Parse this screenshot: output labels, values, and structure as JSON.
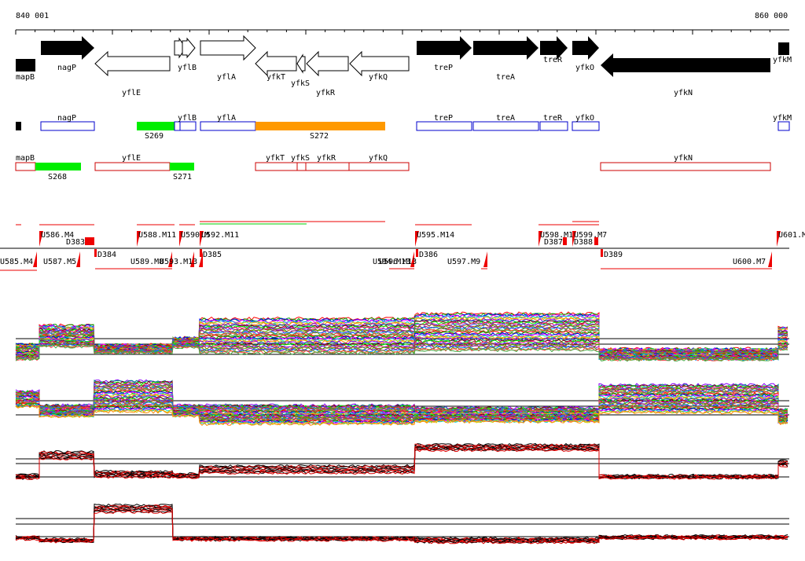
{
  "scale": {
    "start_label": "840 001",
    "end_label": "860 000"
  },
  "colors": {
    "forward_gene": "#000000",
    "reverse_gene": "#ffffff",
    "blue_outline": "#0000cc",
    "red_outline": "#cc0000",
    "green": "#00ee00",
    "orange": "#ff9900",
    "track_red": "#dd0000",
    "track_black": "#000000",
    "segment_line": "#ee0000",
    "green_line": "#00cc00"
  },
  "genes": {
    "top_row": [
      "mapB",
      "nagP",
      "yflB",
      "yflA",
      "yfkT",
      "yfkR",
      "yfkQ",
      "treP",
      "treA",
      "treR",
      "yfkO",
      "yfkM"
    ],
    "bottom_row": [
      "yflE",
      "yfkS",
      "yfkR",
      "yfkN"
    ],
    "labels": {
      "mapB": "mapB",
      "nagP": "nagP",
      "yflE": "yflE",
      "yflB": "yflB",
      "yflA": "yflA",
      "yfkT": "yfkT",
      "yfkS": "yfkS",
      "yfkR": "yfkR",
      "yfkQ": "yfkQ",
      "treP": "treP",
      "treA": "treA",
      "treR": "treR",
      "yfkO": "yfkO",
      "yfkN": "yfkN",
      "yfkM": "yfkM"
    }
  },
  "blue_track": {
    "boxes": [
      "nagP",
      "yflB",
      "yflA",
      "treP",
      "treA",
      "treR",
      "yfkO",
      "yfkM"
    ],
    "highlights": [
      {
        "label": "S269",
        "color": "green"
      },
      {
        "label": "S272",
        "color": "orange"
      }
    ]
  },
  "red_track": {
    "boxes": [
      "mapB",
      "yflE",
      "yfkT",
      "yfkS",
      "yfkR",
      "yfkQ",
      "yfkN"
    ],
    "highlights": [
      {
        "label": "S268",
        "color": "green"
      },
      {
        "label": "S271",
        "color": "green"
      }
    ]
  },
  "segments": {
    "upper_labels": [
      "U586.M4",
      "U588.M11",
      "U590.M",
      "U592.M11",
      "U595.M14",
      "U598.M1",
      "U599.M7",
      "U601.M"
    ],
    "lower_labels": [
      "U585.M4",
      "U587.M5",
      "U589.M8",
      "U593.M13",
      "U594.M13",
      "U596.M13",
      "U597.M9",
      "U600.M7"
    ],
    "d_labels": [
      "D383",
      "D384",
      "D385",
      "D386",
      "D387",
      "D388",
      "D389"
    ]
  }
}
